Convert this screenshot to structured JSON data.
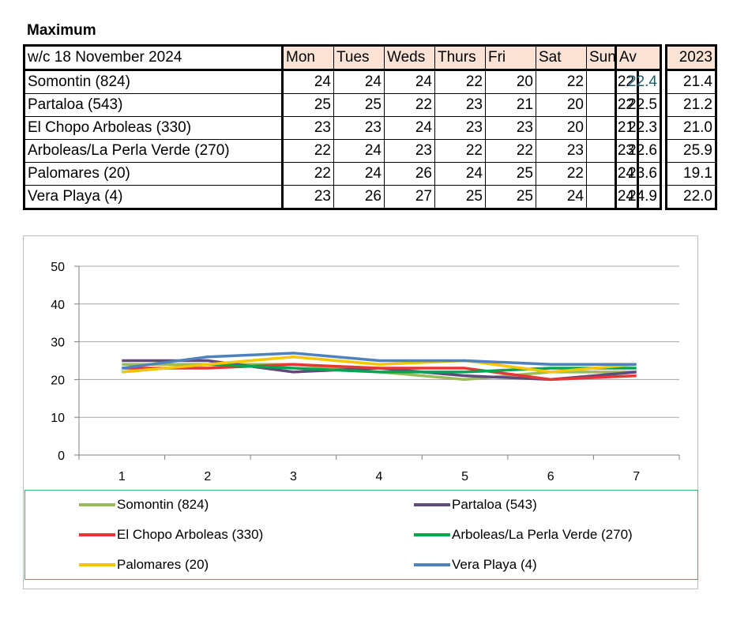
{
  "title": "Maximum",
  "table": {
    "header": "w/c 18 November 2024",
    "days": [
      "Mon",
      "Tues",
      "Weds",
      "Thurs",
      "Fri",
      "Sat",
      "Sun"
    ],
    "avg_header": "Av",
    "prev_header": "2023",
    "rows": [
      {
        "site": "Somontin (824)",
        "values": [
          "24",
          "24",
          "24",
          "22",
          "20",
          "22",
          "22"
        ],
        "avg": "22.4",
        "prev": "21.4"
      },
      {
        "site": "Partaloa (543)",
        "values": [
          "25",
          "25",
          "22",
          "23",
          "21",
          "20",
          "22"
        ],
        "avg": "22.5",
        "prev": "21.2"
      },
      {
        "site": "El Chopo  Arboleas (330)",
        "values": [
          "23",
          "23",
          "24",
          "23",
          "23",
          "20",
          "21"
        ],
        "avg": "22.3",
        "prev": "21.0"
      },
      {
        "site": "Arboleas/La Perla Verde (270)",
        "values": [
          "22",
          "24",
          "23",
          "22",
          "22",
          "23",
          "23"
        ],
        "avg": "22.6",
        "prev": "25.9"
      },
      {
        "site": "Palomares (20)",
        "values": [
          "22",
          "24",
          "26",
          "24",
          "25",
          "22",
          "24"
        ],
        "avg": "23.6",
        "prev": "19.1"
      },
      {
        "site": "Vera Playa (4)",
        "values": [
          "23",
          "26",
          "27",
          "25",
          "25",
          "24",
          "24"
        ],
        "avg": "24.9",
        "prev": "22.0"
      }
    ]
  },
  "chart_data": {
    "type": "line",
    "title": "",
    "xlabel": "",
    "ylabel": "",
    "categories": [
      "1",
      "2",
      "3",
      "4",
      "5",
      "6",
      "7"
    ],
    "ylim": [
      0,
      50
    ],
    "yticks": [
      "0",
      "10",
      "20",
      "30",
      "40",
      "50"
    ],
    "grid": true,
    "legend_position": "bottom",
    "series": [
      {
        "name": "Somontin (824)",
        "color": "#9bbb59",
        "values": [
          24,
          24,
          24,
          22,
          20,
          22,
          22
        ]
      },
      {
        "name": "Partaloa (543)",
        "color": "#604a7b",
        "values": [
          25,
          25,
          22,
          23,
          21,
          20,
          22
        ]
      },
      {
        "name": "El Chopo  Arboleas (330)",
        "color": "#e83535",
        "values": [
          23,
          23,
          24,
          23,
          23,
          20,
          21
        ]
      },
      {
        "name": "Arboleas/La Perla Verde (270)",
        "color": "#00a651",
        "values": [
          22,
          24,
          23,
          22,
          22,
          23,
          23
        ]
      },
      {
        "name": "Palomares (20)",
        "color": "#f7c600",
        "values": [
          22,
          24,
          26,
          24,
          25,
          22,
          24
        ]
      },
      {
        "name": "Vera Playa (4)",
        "color": "#4f81bd",
        "values": [
          23,
          26,
          27,
          25,
          25,
          24,
          24
        ]
      }
    ]
  }
}
